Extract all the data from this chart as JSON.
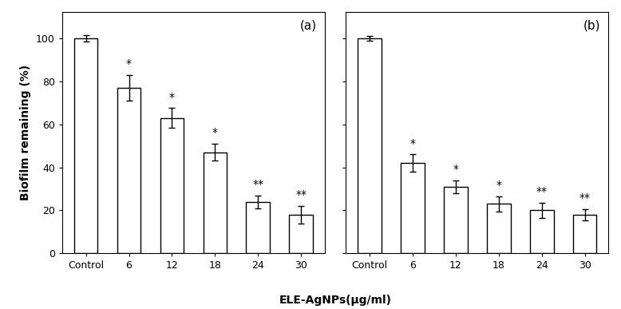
{
  "panel_a": {
    "label": "(a)",
    "categories": [
      "Control",
      "6",
      "12",
      "18",
      "24",
      "30"
    ],
    "values": [
      100,
      77,
      63,
      47,
      24,
      18
    ],
    "errors": [
      1.5,
      6,
      4.5,
      4,
      3,
      4
    ],
    "sig_labels": [
      "",
      "*",
      "*",
      "*",
      "**",
      "**"
    ]
  },
  "panel_b": {
    "label": "(b)",
    "categories": [
      "Control",
      "6",
      "12",
      "18",
      "24",
      "30"
    ],
    "values": [
      100,
      42,
      31,
      23,
      20,
      18
    ],
    "errors": [
      1.0,
      4,
      3,
      3.5,
      3.5,
      2.5
    ],
    "sig_labels": [
      "",
      "*",
      "*",
      "*",
      "**",
      "**"
    ]
  },
  "ylabel": "Biofilm remaining (%)",
  "xlabel": "ELE-AgNPs(μg/ml)",
  "ylim": [
    0,
    112
  ],
  "yticks": [
    0,
    20,
    40,
    60,
    80,
    100
  ],
  "bar_color": "white",
  "bar_edgecolor": "black",
  "bar_width": 0.55,
  "capsize": 3,
  "sig_fontsize": 10,
  "label_fontsize": 10,
  "tick_fontsize": 9,
  "panel_label_fontsize": 11
}
